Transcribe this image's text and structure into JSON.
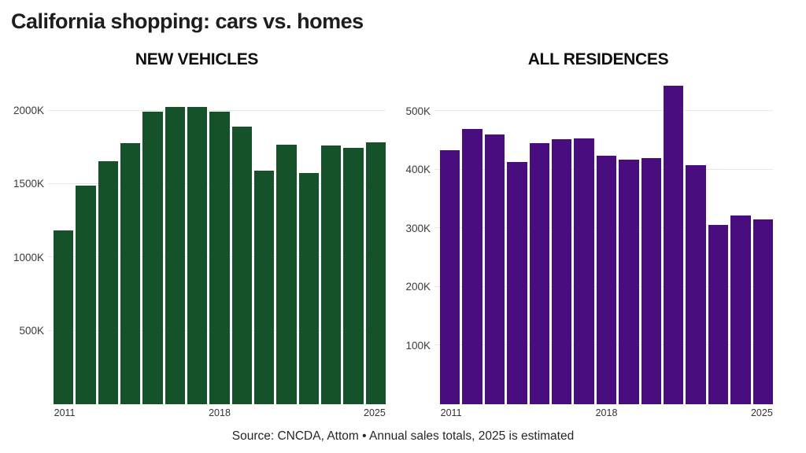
{
  "title": "California shopping: cars vs. homes",
  "source": "Source: CNCDA, Attom • Annual sales totals, 2025 is estimated",
  "colors": {
    "vehicles_bar": "#15522a",
    "residences_bar": "#4a0d7f",
    "gridline": "#e9e9e9",
    "title_text": "#1d1d1d",
    "axis_text": "#3b3b3b"
  },
  "chart_data": [
    {
      "type": "bar",
      "title": "NEW VEHICLES",
      "unit": "thousands of sales (K)",
      "categories": [
        2011,
        2012,
        2013,
        2014,
        2015,
        2016,
        2017,
        2018,
        2019,
        2020,
        2021,
        2022,
        2023,
        2024,
        2025
      ],
      "values": [
        1185,
        1490,
        1655,
        1780,
        1990,
        2025,
        2025,
        1990,
        1890,
        1590,
        1770,
        1575,
        1760,
        1745,
        1785
      ],
      "ylim": [
        0,
        2180
      ],
      "yticks": [
        500,
        1000,
        1500,
        2000
      ],
      "ytick_labels": [
        "500K",
        "1000K",
        "1500K",
        "2000K"
      ],
      "xtick_positions": [
        0,
        7,
        14
      ],
      "xtick_labels": [
        "2011",
        "2018",
        "2025"
      ],
      "grid": true,
      "legend": false,
      "bar_color": "#15522a"
    },
    {
      "type": "bar",
      "title": "ALL RESIDENCES",
      "unit": "thousands of sales (K)",
      "categories": [
        2011,
        2012,
        2013,
        2014,
        2015,
        2016,
        2017,
        2018,
        2019,
        2020,
        2021,
        2022,
        2023,
        2024,
        2025
      ],
      "values": [
        434,
        470,
        460,
        413,
        445,
        452,
        454,
        424,
        417,
        420,
        543,
        408,
        306,
        322,
        315
      ],
      "ylim": [
        0,
        546
      ],
      "yticks": [
        100,
        200,
        300,
        400,
        500
      ],
      "ytick_labels": [
        "100K",
        "200K",
        "300K",
        "400K",
        "500K"
      ],
      "xtick_positions": [
        0,
        7,
        14
      ],
      "xtick_labels": [
        "2011",
        "2018",
        "2025"
      ],
      "grid": true,
      "legend": false,
      "bar_color": "#4a0d7f"
    }
  ]
}
